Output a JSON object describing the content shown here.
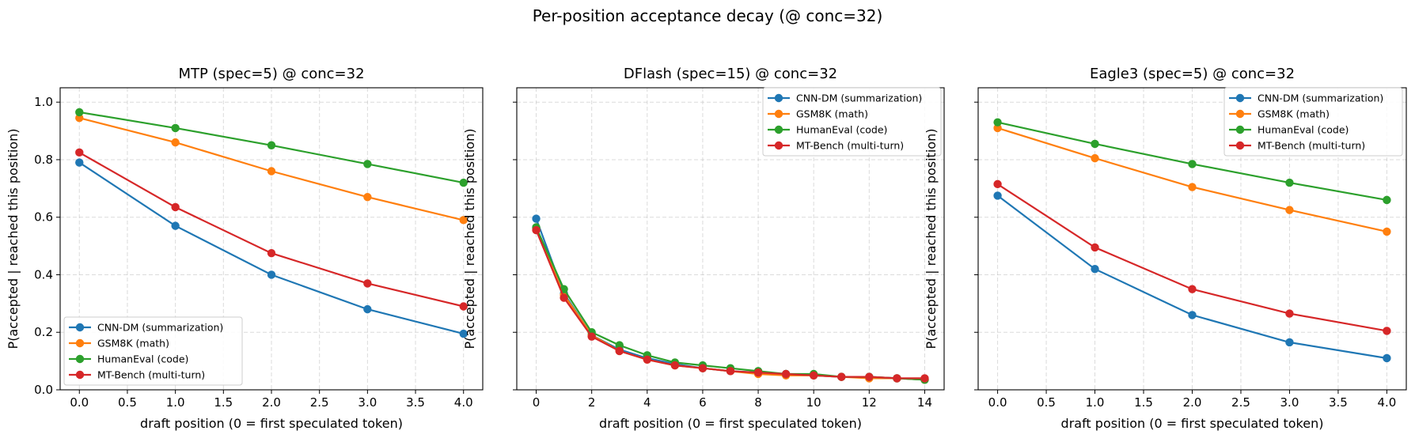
{
  "figure": {
    "title": "Per-position acceptance decay (@ conc=32)"
  },
  "series_colors": {
    "CNN-DM (summarization)": "#1f77b4",
    "GSM8K (math)": "#ff7f0e",
    "HumanEval (code)": "#2ca02c",
    "MT-Bench (multi-turn)": "#d62728"
  },
  "chart_data": [
    {
      "type": "line",
      "title": "MTP (spec=5) @ conc=32",
      "xlabel": "draft position (0 = first speculated token)",
      "ylabel": "P(accepted | reached this position)",
      "xlim": [
        -0.2,
        4.2
      ],
      "ylim": [
        0,
        1.05
      ],
      "xticks": [
        0,
        0.5,
        1,
        1.5,
        2,
        2.5,
        3,
        3.5,
        4
      ],
      "xtick_labels": [
        "0.0",
        "0.5",
        "1.0",
        "1.5",
        "2.0",
        "2.5",
        "3.0",
        "3.5",
        "4.0"
      ],
      "yticks": [
        0,
        0.2,
        0.4,
        0.6,
        0.8,
        1.0
      ],
      "ytick_labels": [
        "0.0",
        "0.2",
        "0.4",
        "0.6",
        "0.8",
        "1.0"
      ],
      "grid": true,
      "legend": "lower-left",
      "x": [
        0,
        1,
        2,
        3,
        4
      ],
      "series": [
        {
          "name": "CNN-DM (summarization)",
          "values": [
            0.79,
            0.57,
            0.4,
            0.28,
            0.195
          ]
        },
        {
          "name": "GSM8K (math)",
          "values": [
            0.945,
            0.86,
            0.76,
            0.67,
            0.59
          ]
        },
        {
          "name": "HumanEval (code)",
          "values": [
            0.965,
            0.91,
            0.85,
            0.785,
            0.72
          ]
        },
        {
          "name": "MT-Bench (multi-turn)",
          "values": [
            0.825,
            0.635,
            0.475,
            0.37,
            0.29
          ]
        }
      ]
    },
    {
      "type": "line",
      "title": "DFlash (spec=15) @ conc=32",
      "xlabel": "draft position (0 = first speculated token)",
      "ylabel": "P(accepted | reached this position)",
      "xlim": [
        -0.7,
        14.7
      ],
      "ylim": [
        0,
        1.05
      ],
      "xticks": [
        0,
        2,
        4,
        6,
        8,
        10,
        12,
        14
      ],
      "xtick_labels": [
        "0",
        "2",
        "4",
        "6",
        "8",
        "10",
        "12",
        "14"
      ],
      "yticks": [
        0,
        0.2,
        0.4,
        0.6,
        0.8,
        1.0
      ],
      "ytick_labels": [],
      "grid": true,
      "legend": "upper-right",
      "x": [
        0,
        1,
        2,
        3,
        4,
        5,
        6,
        7,
        8,
        9,
        10,
        11,
        12,
        13,
        14
      ],
      "series": [
        {
          "name": "CNN-DM (summarization)",
          "values": [
            0.595,
            0.335,
            0.19,
            0.14,
            0.11,
            0.09,
            0.075,
            0.065,
            0.06,
            0.055,
            0.05,
            0.045,
            0.045,
            0.04,
            0.035
          ]
        },
        {
          "name": "GSM8K (math)",
          "values": [
            0.56,
            0.33,
            0.19,
            0.135,
            0.105,
            0.085,
            0.075,
            0.065,
            0.055,
            0.05,
            0.05,
            0.045,
            0.04,
            0.04,
            0.035
          ]
        },
        {
          "name": "HumanEval (code)",
          "values": [
            0.565,
            0.35,
            0.2,
            0.155,
            0.12,
            0.095,
            0.085,
            0.075,
            0.065,
            0.055,
            0.055,
            0.045,
            0.045,
            0.04,
            0.035
          ]
        },
        {
          "name": "MT-Bench (multi-turn)",
          "values": [
            0.555,
            0.32,
            0.185,
            0.135,
            0.105,
            0.085,
            0.075,
            0.065,
            0.06,
            0.055,
            0.05,
            0.045,
            0.045,
            0.04,
            0.04
          ]
        }
      ]
    },
    {
      "type": "line",
      "title": "Eagle3 (spec=5) @ conc=32",
      "xlabel": "draft position (0 = first speculated token)",
      "ylabel": "P(accepted | reached this position)",
      "xlim": [
        -0.2,
        4.2
      ],
      "ylim": [
        0,
        1.05
      ],
      "xticks": [
        0,
        0.5,
        1,
        1.5,
        2,
        2.5,
        3,
        3.5,
        4
      ],
      "xtick_labels": [
        "0.0",
        "0.5",
        "1.0",
        "1.5",
        "2.0",
        "2.5",
        "3.0",
        "3.5",
        "4.0"
      ],
      "yticks": [
        0,
        0.2,
        0.4,
        0.6,
        0.8,
        1.0
      ],
      "ytick_labels": [],
      "grid": true,
      "legend": "upper-right",
      "x": [
        0,
        1,
        2,
        3,
        4
      ],
      "series": [
        {
          "name": "CNN-DM (summarization)",
          "values": [
            0.675,
            0.42,
            0.26,
            0.165,
            0.11
          ]
        },
        {
          "name": "GSM8K (math)",
          "values": [
            0.91,
            0.805,
            0.705,
            0.625,
            0.55
          ]
        },
        {
          "name": "HumanEval (code)",
          "values": [
            0.93,
            0.855,
            0.785,
            0.72,
            0.66
          ]
        },
        {
          "name": "MT-Bench (multi-turn)",
          "values": [
            0.715,
            0.495,
            0.35,
            0.265,
            0.205
          ]
        }
      ]
    }
  ]
}
